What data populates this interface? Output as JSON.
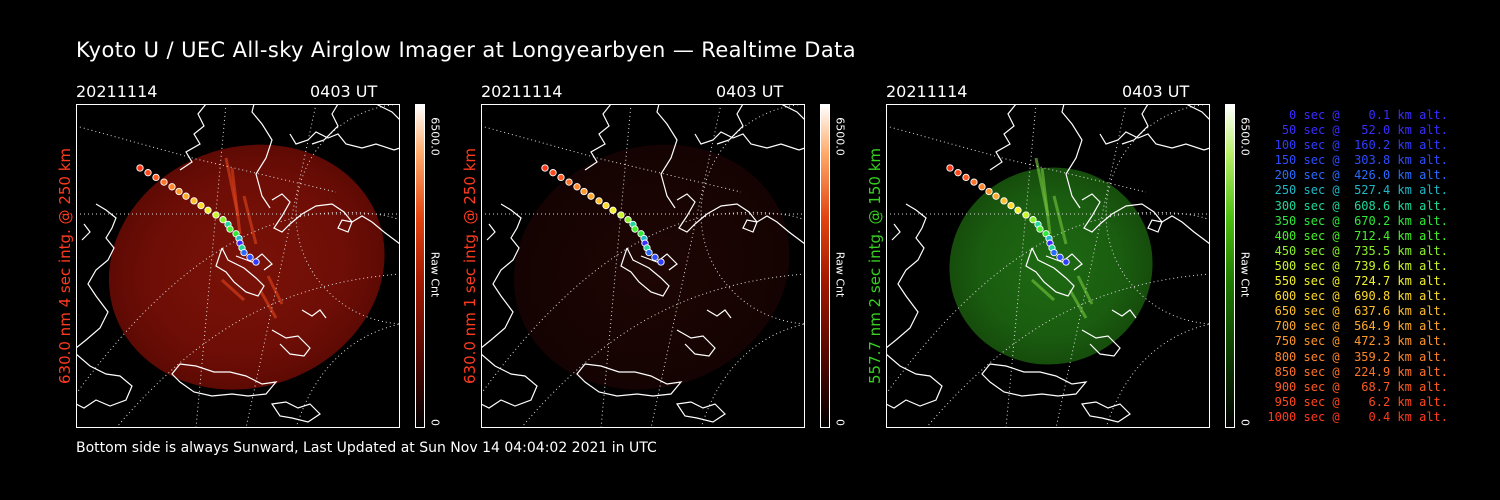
{
  "title": "Kyoto U / UEC All-sky Airglow Imager at Longyearbyen — Realtime Data",
  "footer": "Bottom side is always Sunward, Last Updated at Sun Nov 14 04:04:02 2021 in UTC",
  "panels": [
    {
      "date": "20211114",
      "time": "0403 UT",
      "label": "630.0 nm 4 sec intg. @ 250 km",
      "label_color": "#ff3a1e",
      "cbar_max": "6500.0",
      "cbar_min": "0",
      "cbar_unit": "Raw Cnt",
      "tint": "red",
      "intensity": "bright"
    },
    {
      "date": "20211114",
      "time": "0403 UT",
      "label": "630.0 nm 1 sec intg. @ 250 km",
      "label_color": "#ff3a1e",
      "cbar_max": "6500.0",
      "cbar_min": "0",
      "cbar_unit": "Raw Cnt",
      "tint": "red",
      "intensity": "dim"
    },
    {
      "date": "20211114",
      "time": "0403 UT",
      "label": "557.7 nm 2 sec intg. @ 150 km",
      "label_color": "#35d21f",
      "cbar_max": "6500.0",
      "cbar_min": "0",
      "cbar_unit": "Raw Cnt",
      "tint": "green",
      "intensity": "bright"
    }
  ],
  "legend": [
    {
      "text": "   0 sec @    0.1 km alt.",
      "color": "#3a2cff"
    },
    {
      "text": "  50 sec @   52.0 km alt.",
      "color": "#3a2cff"
    },
    {
      "text": " 100 sec @  160.2 km alt.",
      "color": "#2f3cff"
    },
    {
      "text": " 150 sec @  303.8 km alt.",
      "color": "#2f4cff"
    },
    {
      "text": " 200 sec @  426.0 km alt.",
      "color": "#2a6aff"
    },
    {
      "text": " 250 sec @  527.4 km alt.",
      "color": "#1fb8c8"
    },
    {
      "text": " 300 sec @  608.6 km alt.",
      "color": "#1fd89a"
    },
    {
      "text": " 350 sec @  670.2 km alt.",
      "color": "#2ee83a"
    },
    {
      "text": " 400 sec @  712.4 km alt.",
      "color": "#46f02a"
    },
    {
      "text": " 450 sec @  735.5 km alt.",
      "color": "#8af22a"
    },
    {
      "text": " 500 sec @  739.6 km alt.",
      "color": "#c8f52a"
    },
    {
      "text": " 550 sec @  724.7 km alt.",
      "color": "#f0f02a"
    },
    {
      "text": " 600 sec @  690.8 km alt.",
      "color": "#ffd92a"
    },
    {
      "text": " 650 sec @  637.6 km alt.",
      "color": "#ffbe2a"
    },
    {
      "text": " 700 sec @  564.9 km alt.",
      "color": "#ffa82a"
    },
    {
      "text": " 750 sec @  472.3 km alt.",
      "color": "#ff962a"
    },
    {
      "text": " 800 sec @  359.2 km alt.",
      "color": "#ff842a"
    },
    {
      "text": " 850 sec @  224.9 km alt.",
      "color": "#ff722a"
    },
    {
      "text": " 900 sec @   68.7 km alt.",
      "color": "#ff5a22"
    },
    {
      "text": " 950 sec @    6.2 km alt.",
      "color": "#ff481c"
    },
    {
      "text": "1000 sec @    0.4 km alt.",
      "color": "#ff3a1a"
    }
  ]
}
